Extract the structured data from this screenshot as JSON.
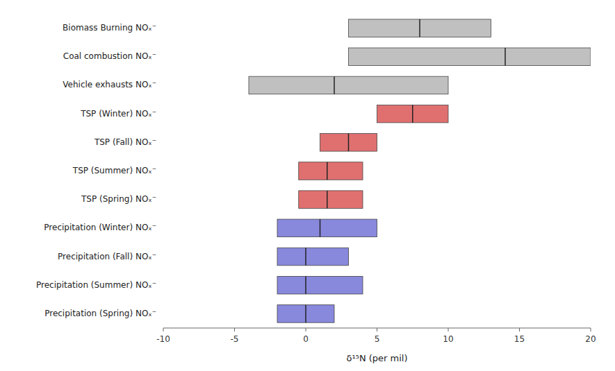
{
  "chart_data": {
    "type": "range_bar",
    "orientation": "horizontal",
    "categories": [
      "Biomass Burning NOₓ⁻",
      "Coal combustion NOₓ⁻",
      "Vehicle exhausts NOₓ⁻",
      "TSP (Winter) NOₓ⁻",
      "TSP (Fall) NOₓ⁻",
      "TSP (Summer) NOₓ⁻",
      "TSP (Spring) NOₓ⁻",
      "Precipitation (Winter) NOₓ⁻",
      "Precipitation (Fall) NOₓ⁻",
      "Precipitation (Summer) NOₓ⁻",
      "Precipitation (Spring) NOₓ⁻"
    ],
    "values": [
      [
        3,
        13
      ],
      [
        3,
        20
      ],
      [
        -4,
        10
      ],
      [
        5,
        10
      ],
      [
        1,
        5
      ],
      [
        -0.5,
        4
      ],
      [
        -0.5,
        4
      ],
      [
        -2,
        5
      ],
      [
        -2,
        3
      ],
      [
        -2,
        4
      ],
      [
        -2,
        2
      ]
    ],
    "mid": [
      8,
      14,
      2,
      7.5,
      3,
      1.5,
      1.5,
      1,
      0,
      0,
      0
    ],
    "colors": [
      "#c0c0c0",
      "#c0c0c0",
      "#c0c0c0",
      "#e07070",
      "#e07070",
      "#e07070",
      "#e07070",
      "#8888dd",
      "#8888dd",
      "#8888dd",
      "#8888dd"
    ],
    "xlabel": "δ¹⁵N (per mil)",
    "xlim": [
      -10,
      20
    ],
    "xticks": [
      -10,
      -5,
      0,
      5,
      10,
      15,
      20
    ]
  }
}
